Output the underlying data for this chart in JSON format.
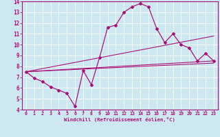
{
  "title": "",
  "xlabel": "Windchill (Refroidissement éolien,°C)",
  "ylabel": "",
  "xlim": [
    -0.5,
    23.5
  ],
  "ylim": [
    4,
    14
  ],
  "xticks": [
    0,
    1,
    2,
    3,
    4,
    5,
    6,
    7,
    8,
    9,
    10,
    11,
    12,
    13,
    14,
    15,
    16,
    17,
    18,
    19,
    20,
    21,
    22,
    23
  ],
  "yticks": [
    4,
    5,
    6,
    7,
    8,
    9,
    10,
    11,
    12,
    13,
    14
  ],
  "bg_color": "#cde8f0",
  "line_color": "#aa1177",
  "line1_x": [
    0,
    1,
    2,
    3,
    4,
    5,
    6,
    7,
    8,
    9,
    10,
    11,
    12,
    13,
    14,
    15,
    16,
    17,
    18,
    19,
    20,
    21,
    22,
    23
  ],
  "line1_y": [
    7.5,
    6.9,
    6.6,
    6.1,
    5.8,
    5.5,
    4.3,
    7.6,
    6.3,
    8.8,
    11.6,
    11.8,
    13.0,
    13.5,
    13.8,
    13.5,
    11.5,
    10.2,
    11.0,
    10.0,
    9.7,
    8.5,
    9.2,
    8.5
  ],
  "line2_x": [
    0,
    23
  ],
  "line2_y": [
    7.5,
    10.8
  ],
  "line3_x": [
    0,
    23
  ],
  "line3_y": [
    7.5,
    8.5
  ],
  "line4_x": [
    0,
    23
  ],
  "line4_y": [
    7.5,
    8.3
  ]
}
